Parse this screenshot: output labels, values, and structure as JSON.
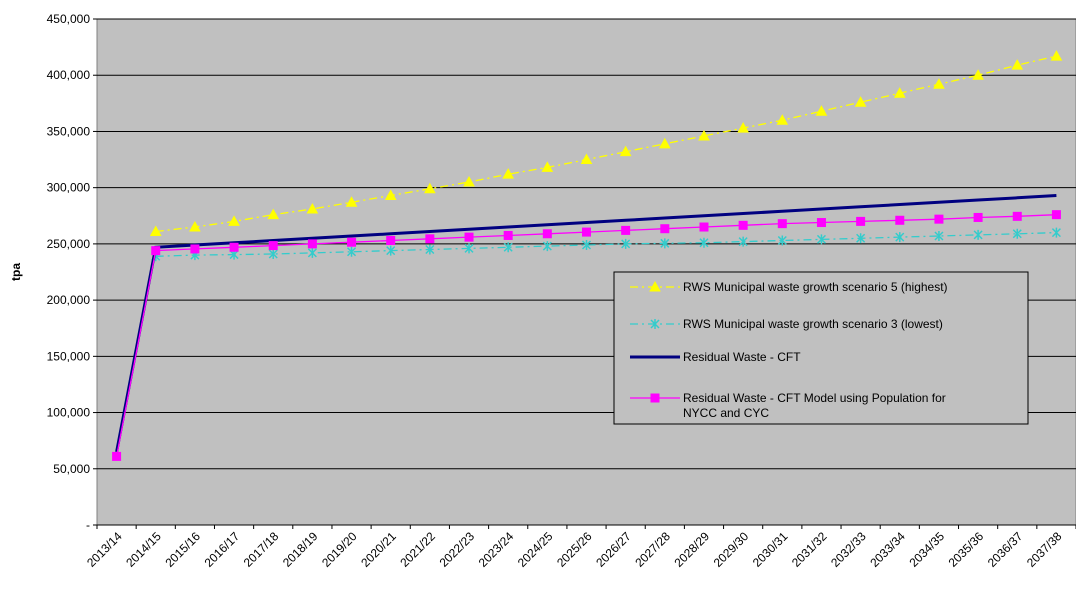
{
  "chart_data": {
    "type": "line",
    "title": "",
    "xlabel": "",
    "ylabel": "tpa",
    "ylim": [
      0,
      450000
    ],
    "yticks": [
      0,
      50000,
      100000,
      150000,
      200000,
      250000,
      300000,
      350000,
      400000,
      450000
    ],
    "ytick_labels": [
      "-",
      "50,000",
      "100,000",
      "150,000",
      "200,000",
      "250,000",
      "300,000",
      "350,000",
      "400,000",
      "450,000"
    ],
    "grid": true,
    "legend_position": "right",
    "categories": [
      "2013/14",
      "2014/15",
      "2015/16",
      "2016/17",
      "2017/18",
      "2018/19",
      "2019/20",
      "2020/21",
      "2021/22",
      "2022/23",
      "2023/24",
      "2024/25",
      "2025/26",
      "2026/27",
      "2027/28",
      "2028/29",
      "2029/30",
      "2030/31",
      "2031/32",
      "2032/33",
      "2033/34",
      "2034/35",
      "2035/36",
      "2036/37",
      "2037/38"
    ],
    "series": [
      {
        "name": "RWS Municipal waste growth scenario 5 (highest)",
        "color": "#ffff00",
        "marker": "triangle",
        "dash": "dash-dot",
        "values": [
          null,
          261000,
          265000,
          270000,
          276000,
          281000,
          287000,
          293000,
          299000,
          305000,
          312000,
          318000,
          325000,
          332000,
          339000,
          346000,
          353000,
          360000,
          368000,
          376000,
          384000,
          392000,
          400000,
          409000,
          417000
        ]
      },
      {
        "name": "RWS Municipal waste growth scenario 3 (lowest)",
        "color": "#33cccc",
        "marker": "x-star",
        "dash": "dash-dot",
        "values": [
          null,
          239000,
          240000,
          240500,
          241000,
          242000,
          243000,
          244000,
          245000,
          246000,
          247000,
          248000,
          249000,
          250000,
          250500,
          251000,
          252000,
          253000,
          254000,
          255000,
          256000,
          257000,
          258000,
          259000,
          260000
        ]
      },
      {
        "name": "Residual Waste - CFT",
        "color": "#000080",
        "marker": "none",
        "dash": "solid",
        "values": [
          65000,
          247000,
          249000,
          251000,
          253000,
          255000,
          257000,
          259000,
          261000,
          263000,
          265000,
          267000,
          269000,
          271000,
          273000,
          275000,
          277000,
          279000,
          281000,
          283000,
          285000,
          287000,
          289000,
          291000,
          293000
        ]
      },
      {
        "name": "Residual Waste - CFT Model using Population for NYCC and CYC",
        "color": "#ff00ff",
        "marker": "square",
        "dash": "solid",
        "values": [
          61000,
          244000,
          245500,
          247000,
          248500,
          250000,
          251500,
          253000,
          254500,
          256000,
          257500,
          259000,
          260500,
          262000,
          263500,
          265000,
          266500,
          268000,
          269000,
          270000,
          271000,
          272000,
          273500,
          274500,
          276000
        ]
      }
    ]
  }
}
